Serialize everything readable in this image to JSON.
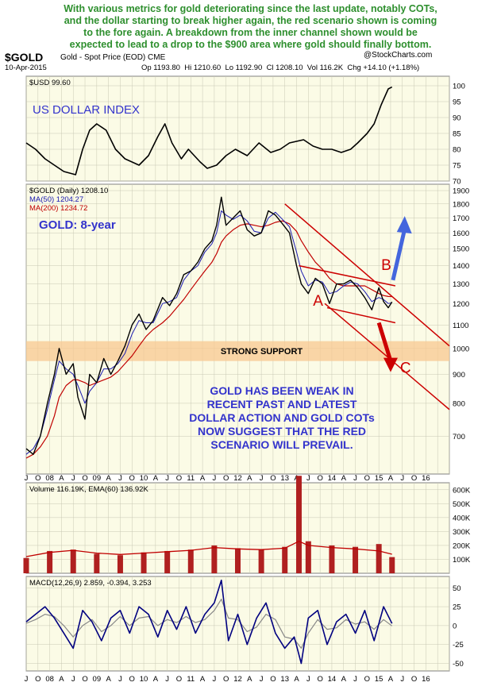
{
  "headline": "With various metrics for gold deteriorating since the last update, notably COTs,\nand the dollar starting to break higher again, the red scenario shown is coming\nto the fore again. A breakdown from the inner channel shown would be\nexpected to lead to a drop to the $900 area where gold should finally bottom.",
  "header": {
    "symbol": "$GOLD",
    "description": "Gold - Spot Price (EOD)  CME",
    "watermark": "@StockCharts.com",
    "date": "10-Apr-2015",
    "stats": "Op 1193.80  Hi 1210.60  Lo 1192.90  Cl 1208.10  Vol 116.2K  Chg +14.10 (+1.18%)"
  },
  "colors": {
    "panel_bg": "#fbfbe6",
    "grid": "#c8c8b4",
    "price": "#000000",
    "ma50": "#1a1ab0",
    "ma200": "#c00000",
    "annotation_red": "#cc0000",
    "annotation_blue": "#3333cc",
    "arrow_blue": "#4466dd",
    "support_band": "#f8c890",
    "volume": "#b02020",
    "macd": "#000080",
    "signal": "#888888"
  },
  "time_axis": {
    "labels": [
      "J",
      "O",
      "08",
      "A",
      "J",
      "O",
      "09",
      "A",
      "J",
      "O",
      "10",
      "A",
      "J",
      "O",
      "11",
      "A",
      "J",
      "O",
      "12",
      "A",
      "J",
      "O",
      "13",
      "A",
      "J",
      "O",
      "14",
      "A",
      "J",
      "O",
      "15",
      "A",
      "J",
      "O",
      "16"
    ],
    "start": 2007.5,
    "end": 2016.5
  },
  "chart_data": [
    {
      "id": "usd",
      "type": "line",
      "legend": "$USD 99.60",
      "title": "US DOLLAR INDEX",
      "ylim": [
        70,
        103
      ],
      "yticks": [
        70,
        75,
        80,
        85,
        90,
        95,
        100
      ],
      "x": [
        2007.5,
        2007.7,
        2007.9,
        2008.1,
        2008.3,
        2008.55,
        2008.7,
        2008.85,
        2009.0,
        2009.2,
        2009.4,
        2009.6,
        2009.9,
        2010.1,
        2010.3,
        2010.45,
        2010.6,
        2010.8,
        2010.95,
        2011.2,
        2011.35,
        2011.55,
        2011.75,
        2011.95,
        2012.2,
        2012.45,
        2012.7,
        2012.9,
        2013.1,
        2013.4,
        2013.6,
        2013.8,
        2014.0,
        2014.2,
        2014.4,
        2014.55,
        2014.75,
        2014.9,
        2015.05,
        2015.2,
        2015.28
      ],
      "values": [
        82,
        80,
        77,
        75,
        73,
        72,
        80,
        86,
        88,
        86,
        80,
        77,
        75,
        78,
        84,
        88,
        82,
        77,
        80,
        76,
        74,
        75,
        78,
        80,
        78,
        82,
        79,
        80,
        82,
        83,
        81,
        80,
        80,
        79,
        80,
        82,
        85,
        88,
        94,
        99,
        99.6
      ]
    },
    {
      "id": "gold",
      "type": "line",
      "legend": [
        "$GOLD (Daily) 1208.10",
        "MA(50) 1204.27",
        "MA(200) 1234.72"
      ],
      "title": "GOLD: 8-year",
      "ylim": [
        600,
        1950
      ],
      "yticks": [
        700,
        800,
        900,
        1000,
        1100,
        1200,
        1300,
        1400,
        1500,
        1600,
        1700,
        1800,
        1900
      ],
      "log": true,
      "x": [
        2007.5,
        2007.65,
        2007.8,
        2007.95,
        2008.1,
        2008.2,
        2008.35,
        2008.5,
        2008.6,
        2008.75,
        2008.85,
        2009.0,
        2009.15,
        2009.3,
        2009.45,
        2009.6,
        2009.75,
        2009.9,
        2010.05,
        2010.2,
        2010.4,
        2010.55,
        2010.7,
        2010.85,
        2011.0,
        2011.15,
        2011.3,
        2011.45,
        2011.55,
        2011.65,
        2011.75,
        2011.9,
        2012.05,
        2012.2,
        2012.35,
        2012.5,
        2012.65,
        2012.8,
        2012.95,
        2013.1,
        2013.25,
        2013.35,
        2013.5,
        2013.65,
        2013.8,
        2013.95,
        2014.1,
        2014.25,
        2014.4,
        2014.55,
        2014.7,
        2014.85,
        2015.0,
        2015.1,
        2015.2,
        2015.28
      ],
      "values": [
        665,
        650,
        700,
        800,
        900,
        1000,
        900,
        940,
        820,
        750,
        900,
        870,
        960,
        900,
        950,
        1010,
        1100,
        1150,
        1080,
        1120,
        1230,
        1190,
        1250,
        1350,
        1370,
        1420,
        1500,
        1550,
        1650,
        1850,
        1650,
        1700,
        1750,
        1620,
        1580,
        1600,
        1750,
        1720,
        1660,
        1600,
        1400,
        1300,
        1250,
        1330,
        1300,
        1200,
        1300,
        1300,
        1320,
        1280,
        1230,
        1170,
        1280,
        1210,
        1180,
        1208.1
      ],
      "ma50": [
        650,
        665,
        700,
        780,
        880,
        950,
        920,
        900,
        860,
        800,
        840,
        870,
        920,
        920,
        940,
        980,
        1060,
        1120,
        1110,
        1110,
        1200,
        1210,
        1230,
        1320,
        1370,
        1400,
        1480,
        1530,
        1600,
        1750,
        1720,
        1690,
        1720,
        1680,
        1610,
        1600,
        1700,
        1740,
        1690,
        1640,
        1480,
        1370,
        1290,
        1320,
        1310,
        1250,
        1260,
        1290,
        1310,
        1300,
        1260,
        1210,
        1230,
        1220,
        1200,
        1204.27
      ],
      "ma200": [
        640,
        650,
        670,
        700,
        760,
        820,
        860,
        880,
        880,
        870,
        860,
        870,
        880,
        890,
        910,
        940,
        970,
        1010,
        1050,
        1080,
        1110,
        1140,
        1180,
        1220,
        1270,
        1320,
        1370,
        1420,
        1470,
        1540,
        1580,
        1620,
        1650,
        1660,
        1650,
        1640,
        1650,
        1670,
        1680,
        1660,
        1610,
        1550,
        1480,
        1420,
        1380,
        1330,
        1300,
        1290,
        1290,
        1290,
        1290,
        1270,
        1250,
        1240,
        1235,
        1234.72
      ],
      "annotations": {
        "support_label": "STRONG SUPPORT",
        "support_range": [
          950,
          1030
        ],
        "point_a": "A",
        "point_b": "B",
        "point_c": "C",
        "commentary": "GOLD HAS BEEN WEAK IN\nRECENT PAST AND LATEST\nDOLLAR ACTION AND GOLD COTs\nNOW SUGGEST THAT THE RED\nSCENARIO WILL PREVAIL."
      }
    },
    {
      "id": "volume",
      "type": "bar",
      "legend": "Volume 116.19K, EMA(60) 136.92K",
      "ylim": [
        0,
        650
      ],
      "yticks": [
        100,
        200,
        300,
        400,
        500,
        600
      ],
      "ytick_labels": [
        "100K",
        "200K",
        "300K",
        "400K",
        "500K",
        "600K"
      ],
      "x": [
        2007.5,
        2008.0,
        2008.5,
        2009.0,
        2009.5,
        2010.0,
        2010.5,
        2011.0,
        2011.5,
        2012.0,
        2012.5,
        2013.0,
        2013.3,
        2013.5,
        2014.0,
        2014.5,
        2015.0,
        2015.28
      ],
      "values": [
        110,
        160,
        170,
        140,
        130,
        150,
        160,
        170,
        200,
        180,
        170,
        190,
        700,
        230,
        200,
        190,
        210,
        116.19
      ],
      "ema": [
        120,
        150,
        165,
        145,
        135,
        145,
        155,
        165,
        185,
        175,
        170,
        180,
        230,
        200,
        185,
        175,
        160,
        136.92
      ]
    },
    {
      "id": "macd",
      "type": "line",
      "legend": "MACD(12,26,9) 2.859, -0.394, 3.253",
      "ylim": [
        -60,
        65
      ],
      "yticks": [
        -50,
        -25,
        0,
        25,
        50
      ],
      "x": [
        2007.5,
        2007.7,
        2007.9,
        2008.1,
        2008.3,
        2008.5,
        2008.7,
        2008.9,
        2009.1,
        2009.3,
        2009.5,
        2009.7,
        2009.9,
        2010.1,
        2010.3,
        2010.5,
        2010.7,
        2010.9,
        2011.1,
        2011.3,
        2011.5,
        2011.65,
        2011.8,
        2012.0,
        2012.2,
        2012.4,
        2012.6,
        2012.8,
        2013.0,
        2013.2,
        2013.35,
        2013.5,
        2013.7,
        2013.9,
        2014.1,
        2014.3,
        2014.5,
        2014.7,
        2014.9,
        2015.1,
        2015.28
      ],
      "macd": [
        5,
        15,
        25,
        10,
        -10,
        -30,
        20,
        5,
        -20,
        10,
        20,
        -10,
        25,
        15,
        -15,
        20,
        -5,
        25,
        -10,
        15,
        30,
        60,
        -20,
        15,
        -25,
        10,
        30,
        -10,
        -30,
        -15,
        -50,
        10,
        20,
        -25,
        5,
        15,
        -10,
        20,
        -20,
        25,
        2.859
      ],
      "signal": [
        3,
        8,
        15,
        12,
        0,
        -15,
        0,
        8,
        -8,
        0,
        12,
        0,
        10,
        12,
        0,
        8,
        4,
        12,
        4,
        8,
        20,
        35,
        10,
        8,
        -8,
        -2,
        15,
        8,
        -15,
        -18,
        -30,
        -10,
        8,
        -5,
        -3,
        8,
        2,
        5,
        -5,
        8,
        -0.394
      ]
    }
  ]
}
